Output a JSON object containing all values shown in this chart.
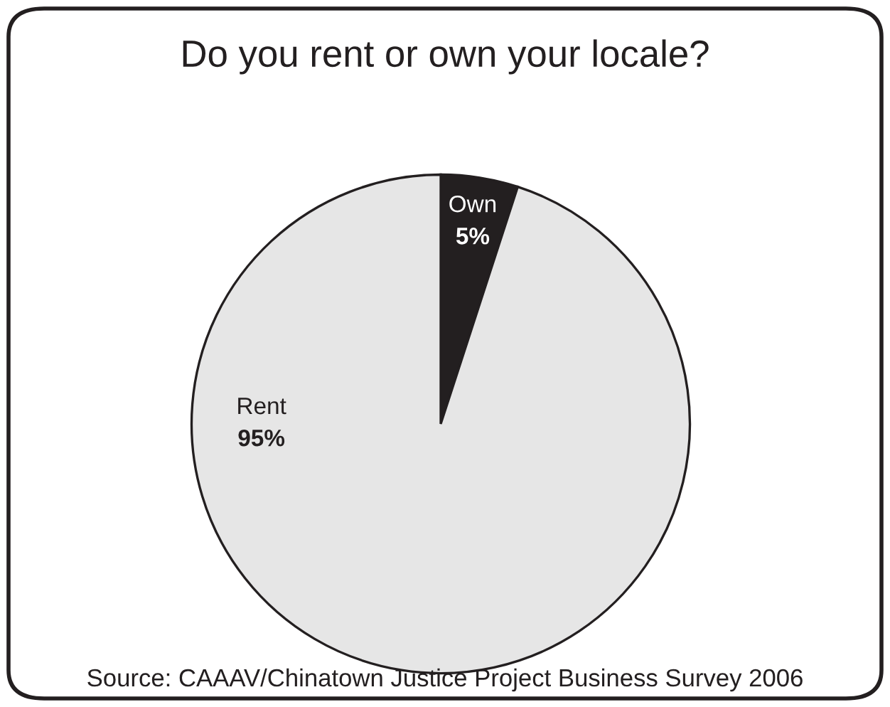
{
  "chart_data": {
    "type": "pie",
    "title": "Do you rent or own your locale?",
    "categories": [
      "Own",
      "Rent"
    ],
    "values": [
      5,
      95
    ],
    "value_labels": [
      "5%",
      "95%"
    ],
    "colors": [
      "#231f20",
      "#e6e6e6"
    ],
    "annotations": [
      "Source: CAAAV/Chinatown Justice Project Business Survey 2006"
    ]
  }
}
